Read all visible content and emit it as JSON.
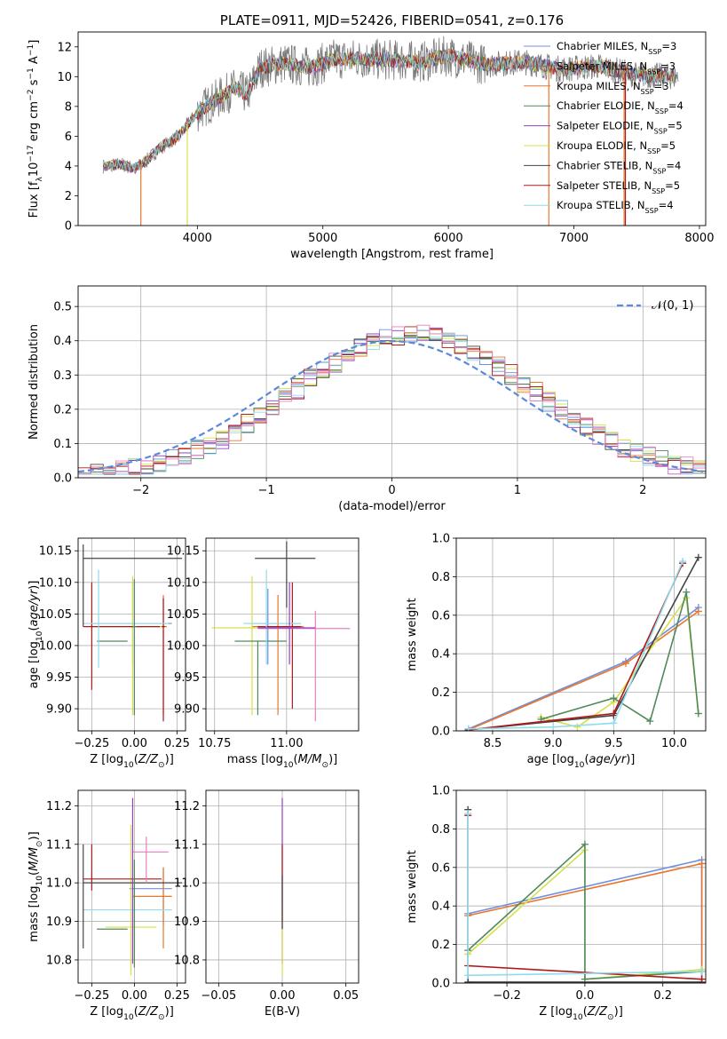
{
  "chart_data": [
    {
      "panel": "spectrum",
      "type": "line",
      "title": "PLATE=0911, MJD=52426, FIBERID=0541, z=0.176",
      "xlabel": "wavelength [Angstrom, rest frame]",
      "ylabel": "Flux [f_λ 10^-17 erg cm^-2 s^-1 A^-1]",
      "xlim": [
        3050,
        8050
      ],
      "ylim": [
        0,
        13
      ],
      "xticks": [
        4000,
        5000,
        6000,
        7000,
        8000
      ],
      "yticks": [
        0,
        2,
        4,
        6,
        8,
        10,
        12
      ],
      "grid": false,
      "legend_position": "top-right",
      "legend": [
        {
          "label": "Chabrier MILES, N",
          "sub": "SSP",
          "tail": "=3",
          "color": "#6f8fe0"
        },
        {
          "label": "Salpeter MILES, N",
          "sub": "SSP",
          "tail": "=3",
          "color": "#7a7a7a"
        },
        {
          "label": "Kroupa MILES, N",
          "sub": "SSP",
          "tail": "=3",
          "color": "#e8772e"
        },
        {
          "label": "Chabrier ELODIE, N",
          "sub": "SSP",
          "tail": "=4",
          "color": "#4f8a5a"
        },
        {
          "label": "Salpeter ELODIE, N",
          "sub": "SSP",
          "tail": "=5",
          "color": "#9440c0"
        },
        {
          "label": "Kroupa ELODIE, N",
          "sub": "SSP",
          "tail": "=5",
          "color": "#d6e04a"
        },
        {
          "label": "Chabrier STELIB, N",
          "sub": "SSP",
          "tail": "=4",
          "color": "#444444"
        },
        {
          "label": "Salpeter STELIB, N",
          "sub": "SSP",
          "tail": "=5",
          "color": "#b01818"
        },
        {
          "label": "Kroupa STELIB, N",
          "sub": "SSP",
          "tail": "=4",
          "color": "#8fdcec"
        }
      ],
      "continuum": {
        "x": [
          3250,
          3400,
          3500,
          3600,
          3700,
          3850,
          4000,
          4100,
          4300,
          4400,
          4500,
          4700,
          4900,
          5100,
          5300,
          5600,
          5800,
          6000,
          6300,
          6600,
          6900,
          7200,
          7500,
          7800
        ],
        "y": [
          4.0,
          4.1,
          3.8,
          4.4,
          5.2,
          6.0,
          7.6,
          8.2,
          9.2,
          8.8,
          10.6,
          10.9,
          10.6,
          11.2,
          11.2,
          11.1,
          11.0,
          11.4,
          10.8,
          11.0,
          10.5,
          10.7,
          10.1,
          10.0
        ]
      }
    },
    {
      "panel": "residuals",
      "type": "line",
      "xlabel": "(data-model)/error",
      "ylabel": "Normed distribution",
      "xlim": [
        -2.5,
        2.5
      ],
      "ylim": [
        0,
        0.56
      ],
      "xticks": [
        -2,
        -1,
        0,
        1,
        2
      ],
      "yticks": [
        0.0,
        0.1,
        0.2,
        0.3,
        0.4,
        0.5
      ],
      "grid": true,
      "legend_position": "top-right",
      "legend": [
        {
          "label": "𝒩(0, 1)",
          "color": "#5b8ad8"
        }
      ]
    },
    {
      "panel": "age-vs-Z",
      "type": "scatter",
      "xlabel": "Z [log10(Z/Z⊙)]",
      "ylabel": "age  [log10(age/yr)]",
      "xlim": [
        -0.33,
        0.3
      ],
      "ylim": [
        9.865,
        10.17
      ],
      "xticks": [
        -0.25,
        0.0,
        0.25
      ],
      "yticks": [
        9.9,
        9.95,
        10.0,
        10.05,
        10.1,
        10.15
      ],
      "points": [
        {
          "x": -0.01,
          "y": 10.035,
          "xe": [
            -0.25,
            0.22
          ],
          "ye": [
            9.97,
            10.1
          ],
          "color": "#6f8fe0"
        },
        {
          "x": 0.17,
          "y": 10.03,
          "xe": [
            -0.2,
            0.19
          ],
          "ye": [
            9.89,
            10.08
          ],
          "color": "#e8772e"
        },
        {
          "x": -0.01,
          "y": 10.03,
          "xe": [
            -0.25,
            0.18
          ],
          "ye": [
            9.89,
            10.11
          ],
          "color": "#d6e04a"
        },
        {
          "x": -0.12,
          "y": 10.007,
          "xe": [
            -0.22,
            -0.04
          ],
          "ye": [
            10.007,
            10.007
          ],
          "color": "#4f8a5a"
        },
        {
          "x": 0.17,
          "y": 10.03,
          "xe": [
            0.16,
            0.18
          ],
          "ye": [
            9.88,
            10.075
          ],
          "color": "#b01818"
        },
        {
          "x": -0.25,
          "y": 10.03,
          "xe": [
            -0.3,
            0.15
          ],
          "ye": [
            9.93,
            10.1
          ],
          "color": "#b01818"
        },
        {
          "x": -0.21,
          "y": 10.035,
          "xe": [
            -0.3,
            0.2
          ],
          "ye": [
            9.965,
            10.12
          ],
          "color": "#8fdcec"
        },
        {
          "x": -0.3,
          "y": 10.138,
          "xe": [
            -0.3,
            0.28
          ],
          "ye": [
            10.03,
            10.16
          ],
          "color": "#444444"
        },
        {
          "x": 0.0,
          "y": 10.03,
          "xe": [
            -0.01,
            0.01
          ],
          "ye": [
            9.89,
            10.105
          ],
          "color": "#4f8a5a"
        }
      ]
    },
    {
      "panel": "age-vs-mass",
      "type": "scatter",
      "xlabel": "mass [log10(M/M⊙)]",
      "ylabel": "",
      "xlim": [
        10.72,
        11.25
      ],
      "ylim": [
        9.865,
        10.17
      ],
      "xticks": [
        10.75,
        11.0
      ],
      "yticks": [
        9.9,
        9.95,
        10.0,
        10.05,
        10.1,
        10.15
      ],
      "points": [
        {
          "x": 10.935,
          "y": 10.035,
          "xe": [
            10.88,
            11.05
          ],
          "ye": [
            9.97,
            10.09
          ],
          "color": "#6f8fe0"
        },
        {
          "x": 10.97,
          "y": 10.03,
          "xe": [
            10.88,
            11.06
          ],
          "ye": [
            9.89,
            10.08
          ],
          "color": "#e8772e"
        },
        {
          "x": 10.88,
          "y": 10.028,
          "xe": [
            10.74,
            10.98
          ],
          "ye": [
            9.89,
            10.11
          ],
          "color": "#d6e04a"
        },
        {
          "x": 10.9,
          "y": 10.007,
          "xe": [
            10.82,
            11.0
          ],
          "ye": [
            9.89,
            10.007
          ],
          "color": "#4f8a5a"
        },
        {
          "x": 11.02,
          "y": 10.03,
          "xe": [
            10.9,
            11.05
          ],
          "ye": [
            9.9,
            10.1
          ],
          "color": "#b01818"
        },
        {
          "x": 10.93,
          "y": 10.035,
          "xe": [
            10.85,
            11.05
          ],
          "ye": [
            9.97,
            10.12
          ],
          "color": "#8fdcec"
        },
        {
          "x": 11.1,
          "y": 10.027,
          "xe": [
            10.9,
            11.22
          ],
          "ye": [
            9.88,
            10.055
          ],
          "color": "#e87fc0"
        },
        {
          "x": 11.01,
          "y": 10.028,
          "xe": [
            10.9,
            11.1
          ],
          "ye": [
            9.97,
            10.1
          ],
          "color": "#9440c0"
        },
        {
          "x": 11.0,
          "y": 10.138,
          "xe": [
            10.89,
            11.1
          ],
          "ye": [
            10.06,
            10.165
          ],
          "color": "#444444"
        }
      ]
    },
    {
      "panel": "massweight-vs-age",
      "type": "line",
      "xlabel": "age  [log10(age/yr)]",
      "ylabel": "mass weight",
      "xlim": [
        8.2,
        10.26
      ],
      "ylim": [
        0,
        1.0
      ],
      "xticks": [
        8.5,
        9.0,
        9.5,
        10.0
      ],
      "yticks": [
        0.0,
        0.2,
        0.4,
        0.6,
        0.8,
        1.0
      ],
      "grid": true,
      "series": [
        {
          "x": [
            8.3,
            9.6,
            10.2
          ],
          "y": [
            0.01,
            0.36,
            0.64
          ],
          "color": "#6f8fe0"
        },
        {
          "x": [
            8.3,
            9.6,
            10.2
          ],
          "y": [
            0.005,
            0.35,
            0.62
          ],
          "color": "#e8772e"
        },
        {
          "x": [
            8.9,
            9.2,
            9.5,
            10.1,
            10.2
          ],
          "y": [
            0.07,
            0.02,
            0.15,
            0.69,
            0.09
          ],
          "color": "#d6e04a"
        },
        {
          "x": [
            8.9,
            9.5,
            9.8,
            10.1,
            10.2
          ],
          "y": [
            0.06,
            0.17,
            0.05,
            0.72,
            0.09
          ],
          "color": "#4f8a5a"
        },
        {
          "x": [
            8.3,
            9.5,
            10.2
          ],
          "y": [
            0.005,
            0.08,
            0.9
          ],
          "color": "#444444"
        },
        {
          "x": [
            8.3,
            9.5,
            10.07
          ],
          "y": [
            0.005,
            0.09,
            0.87
          ],
          "color": "#b01818"
        },
        {
          "x": [
            8.3,
            9.0,
            9.5,
            10.07
          ],
          "y": [
            0.01,
            0.02,
            0.04,
            0.88
          ],
          "color": "#8fdcec"
        }
      ]
    },
    {
      "panel": "mass-vs-Z",
      "type": "scatter",
      "xlabel": "Z [log10(Z/Z⊙)]",
      "ylabel": "mass [log10(M/M⊙)]",
      "xlim": [
        -0.33,
        0.3
      ],
      "ylim": [
        10.74,
        11.24
      ],
      "xticks": [
        -0.25,
        0.0,
        0.25
      ],
      "yticks": [
        10.8,
        10.9,
        11.0,
        11.1,
        11.2
      ],
      "points": [
        {
          "x": 0.17,
          "y": 10.985,
          "xe": [
            -0.03,
            0.22
          ],
          "ye": [
            10.89,
            11.04
          ],
          "color": "#6f8fe0"
        },
        {
          "x": 0.17,
          "y": 10.965,
          "xe": [
            -0.01,
            0.22
          ],
          "ye": [
            10.83,
            11.04
          ],
          "color": "#e8772e"
        },
        {
          "x": -0.02,
          "y": 10.885,
          "xe": [
            -0.17,
            0.13
          ],
          "ye": [
            10.76,
            11.15
          ],
          "color": "#d6e04a"
        },
        {
          "x": -0.12,
          "y": 10.88,
          "xe": [
            -0.22,
            -0.04
          ],
          "ye": [
            10.88,
            10.88
          ],
          "color": "#4f8a5a"
        },
        {
          "x": -0.25,
          "y": 11.01,
          "xe": [
            -0.3,
            0.16
          ],
          "ye": [
            10.98,
            11.1
          ],
          "color": "#b01818"
        },
        {
          "x": -0.21,
          "y": 10.93,
          "xe": [
            -0.3,
            0.22
          ],
          "ye": [
            10.93,
            10.93
          ],
          "color": "#8fdcec"
        },
        {
          "x": -0.3,
          "y": 11.0,
          "xe": [
            -0.3,
            0.28
          ],
          "ye": [
            10.83,
            11.1
          ],
          "color": "#444444"
        },
        {
          "x": 0.07,
          "y": 11.08,
          "xe": [
            -0.01,
            0.2
          ],
          "ye": [
            11.0,
            11.12
          ],
          "color": "#e87fc0"
        },
        {
          "x": -0.01,
          "y": 11.0,
          "xe": [
            -0.01,
            -0.01
          ],
          "ye": [
            10.79,
            11.22
          ],
          "color": "#9440c0"
        },
        {
          "x": 0.0,
          "y": 11.0,
          "xe": [
            0.0,
            0.0
          ],
          "ye": [
            10.78,
            11.06
          ],
          "color": "#4f8a5a"
        }
      ]
    },
    {
      "panel": "mass-vs-EBV",
      "type": "scatter",
      "xlabel": "E(B-V)",
      "ylabel": "",
      "xlim": [
        -0.06,
        0.06
      ],
      "ylim": [
        10.74,
        11.24
      ],
      "xticks": [
        -0.05,
        0.0,
        0.05
      ],
      "yticks": [
        10.8,
        10.9,
        11.0,
        11.1,
        11.2
      ],
      "points": [
        {
          "x": 0.0,
          "y": 11.0,
          "ye": [
            10.79,
            11.22
          ],
          "color": "#9440c0"
        },
        {
          "x": 0.0,
          "y": 11.0,
          "ye": [
            10.9,
            11.1
          ],
          "color": "#b01818"
        },
        {
          "x": 0.0,
          "y": 10.92,
          "ye": [
            10.76,
            10.95
          ],
          "color": "#d6e04a"
        },
        {
          "x": 0.0,
          "y": 10.95,
          "ye": [
            10.88,
            11.02
          ],
          "color": "#444444"
        }
      ]
    },
    {
      "panel": "massweight-vs-Z",
      "type": "line",
      "xlabel": "Z [log10(Z/Z⊙)]",
      "ylabel": "mass weight",
      "xlim": [
        -0.33,
        0.31
      ],
      "ylim": [
        0,
        1.0
      ],
      "xticks": [
        -0.2,
        0.0,
        0.2
      ],
      "yticks": [
        0.0,
        0.2,
        0.4,
        0.6,
        0.8,
        1.0
      ],
      "grid": true,
      "series": [
        {
          "x": [
            -0.3,
            0.3,
            0.3
          ],
          "y": [
            0.36,
            0.64,
            0.0
          ],
          "color": "#6f8fe0"
        },
        {
          "x": [
            -0.3,
            0.3,
            0.3
          ],
          "y": [
            0.35,
            0.62,
            0.0
          ],
          "color": "#e8772e"
        },
        {
          "x": [
            -0.3,
            0.0,
            0.0,
            0.3
          ],
          "y": [
            0.15,
            0.69,
            0.02,
            0.07
          ],
          "color": "#d6e04a"
        },
        {
          "x": [
            -0.3,
            0.0,
            0.0,
            0.3
          ],
          "y": [
            0.17,
            0.72,
            0.02,
            0.06
          ],
          "color": "#4f8a5a"
        },
        {
          "x": [
            -0.3,
            -0.3,
            0.3
          ],
          "y": [
            0.9,
            0.005,
            0.005
          ],
          "color": "#444444"
        },
        {
          "x": [
            -0.3,
            -0.3,
            0.3
          ],
          "y": [
            0.87,
            0.09,
            0.02
          ],
          "color": "#b01818"
        },
        {
          "x": [
            -0.3,
            -0.3,
            0.3
          ],
          "y": [
            0.88,
            0.04,
            0.06
          ],
          "color": "#8fdcec"
        }
      ]
    }
  ]
}
